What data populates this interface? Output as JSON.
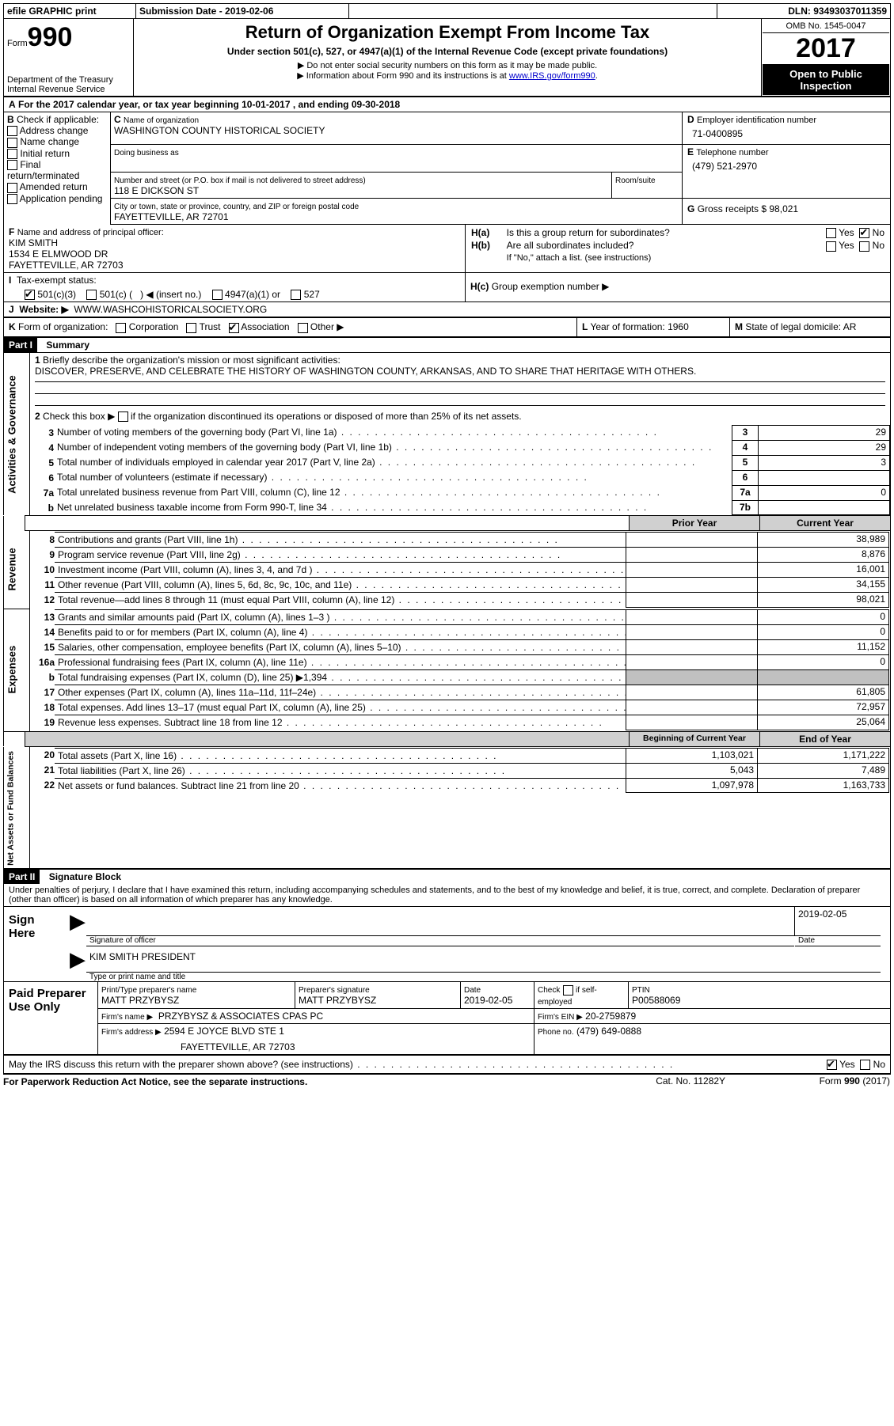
{
  "topbar": {
    "efile_label": "efile GRAPHIC print",
    "submission_label": "Submission Date - 2019-02-06",
    "dln_label": "DLN: 93493037011359"
  },
  "header": {
    "form_word": "Form",
    "form_990": "990",
    "dept": "Department of the Treasury",
    "irs": "Internal Revenue Service",
    "title": "Return of Organization Exempt From Income Tax",
    "subtitle": "Under section 501(c), 527, or 4947(a)(1) of the Internal Revenue Code (except private foundations)",
    "nossn": "Do not enter social security numbers on this form as it may be made public.",
    "info_pre": "Information about Form 990 and its instructions is at ",
    "info_link": "www.IRS.gov/form990",
    "omb": "OMB No. 1545-0047",
    "year": "2017",
    "open": "Open to Public",
    "inspection": "Inspection"
  },
  "sectA": {
    "line": "For the 2017 calendar year, or tax year beginning 10-01-2017   , and ending 09-30-2018"
  },
  "sectB": {
    "label": "Check if applicable:",
    "items": [
      "Address change",
      "Name change",
      "Initial return",
      "Final return/terminated",
      "Amended return",
      "Application pending"
    ]
  },
  "sectC": {
    "name_lbl": "Name of organization",
    "name": "WASHINGTON COUNTY HISTORICAL SOCIETY",
    "dba_lbl": "Doing business as",
    "street_lbl": "Number and street (or P.O. box if mail is not delivered to street address)",
    "room_lbl": "Room/suite",
    "street": "118 E DICKSON ST",
    "city_lbl": "City or town, state or province, country, and ZIP or foreign postal code",
    "city": "FAYETTEVILLE, AR  72701"
  },
  "sectD": {
    "lbl": "Employer identification number",
    "val": "71-0400895"
  },
  "sectE": {
    "lbl": "Telephone number",
    "val": "(479) 521-2970"
  },
  "sectG": {
    "lbl": "Gross receipts $ 98,021"
  },
  "sectF": {
    "lbl": "Name and address of principal officer:",
    "name": "KIM SMITH",
    "addr1": "1534 E ELMWOOD DR",
    "addr2": "FAYETTEVILLE, AR  72703"
  },
  "sectH": {
    "ha": "Is this a group return for subordinates?",
    "hb": "Are all subordinates included?",
    "hb_note": "If \"No,\" attach a list. (see instructions)",
    "hc": "Group exemption number ▶",
    "yes": "Yes",
    "no": "No"
  },
  "taxexempt": {
    "lbl": "Tax-exempt status:",
    "c1": "501(c)(3)",
    "c2a": "501(c) (",
    "c2b": ") ◀ (insert no.)",
    "c3": "4947(a)(1) or",
    "c4": "527"
  },
  "website": {
    "lbl": "Website: ▶",
    "val": "WWW.WASHCOHISTORICALSOCIETY.ORG"
  },
  "sectK": {
    "lbl": "Form of organization:",
    "corp": "Corporation",
    "trust": "Trust",
    "assoc": "Association",
    "other": "Other ▶"
  },
  "sectL": {
    "lbl": "Year of formation: 1960"
  },
  "sectM": {
    "lbl": "State of legal domicile: AR"
  },
  "part1": {
    "hdr": "Part I",
    "title": "Summary",
    "l1": "Briefly describe the organization's mission or most significant activities:",
    "mission": "DISCOVER, PRESERVE, AND CELEBRATE THE HISTORY OF WASHINGTON COUNTY, ARKANSAS, AND TO SHARE THAT HERITAGE WITH OTHERS.",
    "l2": "Check this box ▶",
    "l2b": "if the organization discontinued its operations or disposed of more than 25% of its net assets.",
    "rows_gov": [
      {
        "n": "3",
        "t": "Number of voting members of the governing body (Part VI, line 1a)",
        "v": "29"
      },
      {
        "n": "4",
        "t": "Number of independent voting members of the governing body (Part VI, line 1b)",
        "v": "29"
      },
      {
        "n": "5",
        "t": "Total number of individuals employed in calendar year 2017 (Part V, line 2a)",
        "v": "3"
      },
      {
        "n": "6",
        "t": "Total number of volunteers (estimate if necessary)",
        "v": ""
      },
      {
        "n": "7a",
        "t": "Total unrelated business revenue from Part VIII, column (C), line 12",
        "v": "0"
      },
      {
        "n": "b",
        "t": "Net unrelated business taxable income from Form 990-T, line 34",
        "nn": "7b",
        "v": ""
      }
    ],
    "prior": "Prior Year",
    "current": "Current Year",
    "rows_rev": [
      {
        "n": "8",
        "t": "Contributions and grants (Part VIII, line 1h)",
        "p": "",
        "c": "38,989"
      },
      {
        "n": "9",
        "t": "Program service revenue (Part VIII, line 2g)",
        "p": "",
        "c": "8,876"
      },
      {
        "n": "10",
        "t": "Investment income (Part VIII, column (A), lines 3, 4, and 7d )",
        "p": "",
        "c": "16,001"
      },
      {
        "n": "11",
        "t": "Other revenue (Part VIII, column (A), lines 5, 6d, 8c, 9c, 10c, and 11e)",
        "p": "",
        "c": "34,155"
      },
      {
        "n": "12",
        "t": "Total revenue—add lines 8 through 11 (must equal Part VIII, column (A), line 12)",
        "p": "",
        "c": "98,021"
      }
    ],
    "rows_exp": [
      {
        "n": "13",
        "t": "Grants and similar amounts paid (Part IX, column (A), lines 1–3 )",
        "p": "",
        "c": "0"
      },
      {
        "n": "14",
        "t": "Benefits paid to or for members (Part IX, column (A), line 4)",
        "p": "",
        "c": "0"
      },
      {
        "n": "15",
        "t": "Salaries, other compensation, employee benefits (Part IX, column (A), lines 5–10)",
        "p": "",
        "c": "11,152"
      },
      {
        "n": "16a",
        "t": "Professional fundraising fees (Part IX, column (A), line 11e)",
        "p": "",
        "c": "0"
      },
      {
        "n": "b",
        "t": "Total fundraising expenses (Part IX, column (D), line 25) ▶1,394",
        "nn": "",
        "p": null,
        "c": null,
        "gray": true
      },
      {
        "n": "17",
        "t": "Other expenses (Part IX, column (A), lines 11a–11d, 11f–24e)",
        "p": "",
        "c": "61,805"
      },
      {
        "n": "18",
        "t": "Total expenses. Add lines 13–17 (must equal Part IX, column (A), line 25)",
        "p": "",
        "c": "72,957"
      },
      {
        "n": "19",
        "t": "Revenue less expenses. Subtract line 18 from line 12",
        "p": "",
        "c": "25,064"
      }
    ],
    "begin": "Beginning of Current Year",
    "end": "End of Year",
    "rows_net": [
      {
        "n": "20",
        "t": "Total assets (Part X, line 16)",
        "p": "1,103,021",
        "c": "1,171,222"
      },
      {
        "n": "21",
        "t": "Total liabilities (Part X, line 26)",
        "p": "5,043",
        "c": "7,489"
      },
      {
        "n": "22",
        "t": "Net assets or fund balances. Subtract line 21 from line 20",
        "p": "1,097,978",
        "c": "1,163,733"
      }
    ],
    "rot_gov": "Activities & Governance",
    "rot_rev": "Revenue",
    "rot_exp": "Expenses",
    "rot_net": "Net Assets or\nFund Balances"
  },
  "part2": {
    "hdr": "Part II",
    "title": "Signature Block",
    "perjury": "Under penalties of perjury, I declare that I have examined this return, including accompanying schedules and statements, and to the best of my knowledge and belief, it is true, correct, and complete. Declaration of preparer (other than officer) is based on all information of which preparer has any knowledge.",
    "sign_here": "Sign Here",
    "sig_officer": "Signature of officer",
    "date": "Date",
    "sig_date": "2019-02-05",
    "officer_name": "KIM SMITH PRESIDENT",
    "type_name": "Type or print name and title",
    "paid": "Paid Preparer Use Only",
    "prep_name_lbl": "Print/Type preparer's name",
    "prep_name": "MATT PRZYBYSZ",
    "prep_sig_lbl": "Preparer's signature",
    "prep_sig": "MATT PRZYBYSZ",
    "date_lbl": "Date",
    "prep_date": "2019-02-05",
    "check_if": "Check",
    "self_emp": "if self-employed",
    "ptin_lbl": "PTIN",
    "ptin": "P00588069",
    "firm_name_lbl": "Firm's name     ▶",
    "firm_name": "PRZYBYSZ & ASSOCIATES CPAS PC",
    "firm_ein_lbl": "Firm's EIN ▶",
    "firm_ein": "20-2759879",
    "firm_addr_lbl": "Firm's address ▶",
    "firm_addr1": "2594 E JOYCE BLVD STE 1",
    "firm_addr2": "FAYETTEVILLE, AR  72703",
    "phone_lbl": "Phone no.",
    "phone": "(479) 649-0888",
    "may_discuss": "May the IRS discuss this return with the preparer shown above? (see instructions)",
    "yes": "Yes",
    "no": "No"
  },
  "footer": {
    "pra": "For Paperwork Reduction Act Notice, see the separate instructions.",
    "cat": "Cat. No. 11282Y",
    "form": "Form",
    "n990": "990",
    "yr": "(2017)"
  },
  "letters": {
    "A": "A",
    "B": "B",
    "C": "C",
    "D": "D",
    "E": "E",
    "F": "F",
    "G": "G",
    "H(a)": "H(a)",
    "H(b)": "H(b)",
    "H(c)": "H(c)",
    "I": "I",
    "J": "J",
    "K": "K",
    "L": "L",
    "M": "M"
  }
}
